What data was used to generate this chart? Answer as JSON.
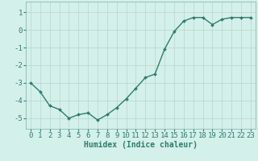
{
  "x": [
    0,
    1,
    2,
    3,
    4,
    5,
    6,
    7,
    8,
    9,
    10,
    11,
    12,
    13,
    14,
    15,
    16,
    17,
    18,
    19,
    20,
    21,
    22,
    23
  ],
  "y": [
    -3.0,
    -3.5,
    -4.3,
    -4.5,
    -5.0,
    -4.8,
    -4.7,
    -5.1,
    -4.8,
    -4.4,
    -3.9,
    -3.3,
    -2.7,
    -2.5,
    -1.1,
    -0.1,
    0.5,
    0.7,
    0.7,
    0.3,
    0.6,
    0.7,
    0.7,
    0.7
  ],
  "line_color": "#2d7d6e",
  "marker": "D",
  "marker_size": 2,
  "bg_color": "#d4f0eb",
  "grid_color": "#b8d4cf",
  "xlabel": "Humidex (Indice chaleur)",
  "xlim": [
    -0.5,
    23.5
  ],
  "ylim": [
    -5.6,
    1.6
  ],
  "yticks": [
    -5,
    -4,
    -3,
    -2,
    -1,
    0,
    1
  ],
  "xtick_labels": [
    "0",
    "1",
    "2",
    "3",
    "4",
    "5",
    "6",
    "7",
    "8",
    "9",
    "10",
    "11",
    "12",
    "13",
    "14",
    "15",
    "16",
    "17",
    "18",
    "19",
    "20",
    "21",
    "22",
    "23"
  ],
  "xlabel_fontsize": 7,
  "tick_fontsize": 6.5,
  "line_width": 1.0
}
